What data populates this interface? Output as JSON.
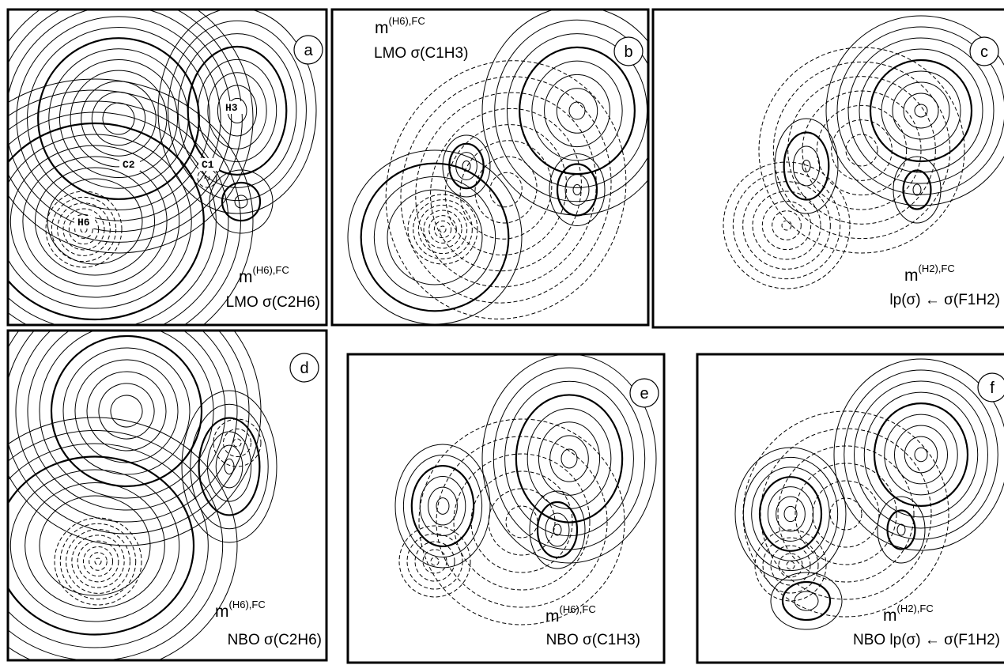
{
  "panels": [
    {
      "letter": "a",
      "label": {
        "base": "m",
        "sup": "(H6),FC"
      },
      "caption": "LMO σ(C2H6)",
      "atoms": [
        "H3",
        "C2",
        "C1",
        "H6"
      ]
    },
    {
      "letter": "b",
      "label": {
        "base": "m",
        "sup": "(H6),FC"
      },
      "caption": "LMO σ(C1H3)"
    },
    {
      "letter": "c",
      "label": {
        "base": "m",
        "sup": "(H2),FC"
      },
      "caption": "lp(σ) ← σ(F1H2)"
    },
    {
      "letter": "d",
      "label": {
        "base": "m",
        "sup": "(H6),FC"
      },
      "caption": "NBO σ(C2H6)"
    },
    {
      "letter": "e",
      "label": {
        "base": "m",
        "sup": "(H6),FC"
      },
      "caption": "NBO σ(C1H3)"
    },
    {
      "letter": "f",
      "label": {
        "base": "m",
        "sup": "(H2),FC"
      },
      "caption": "NBO  lp(σ) ← σ(F1H2)"
    }
  ]
}
